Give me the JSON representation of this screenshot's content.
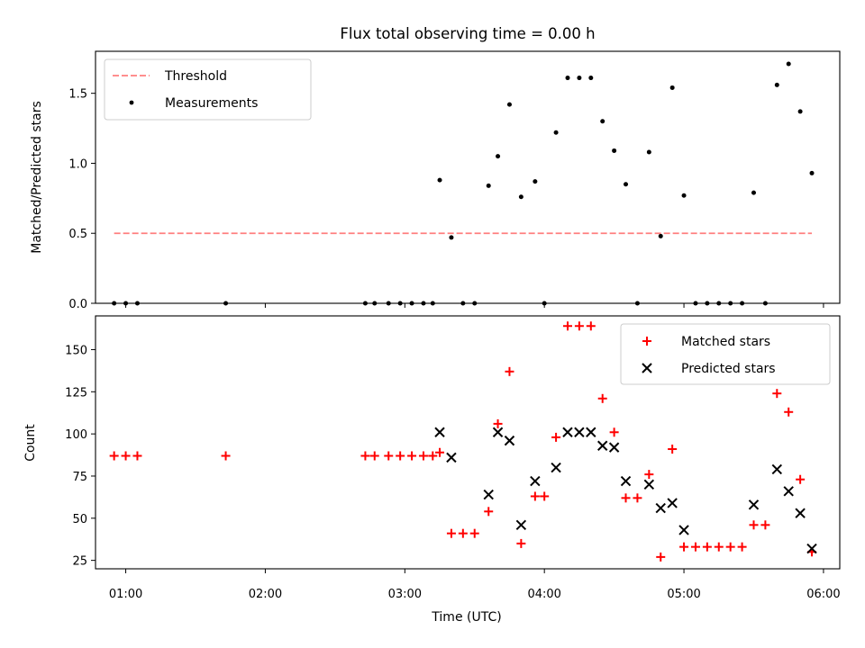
{
  "figure": {
    "title": "Flux total observing time = 0.00 h"
  },
  "chart_data": [
    {
      "type": "scatter",
      "ylabel": "Matched/Predicted stars",
      "xlabel": "",
      "xlim": [
        "00:47",
        "06:07"
      ],
      "ylim": [
        0,
        1.8
      ],
      "yticks": [
        0.0,
        0.5,
        1.0,
        1.5
      ],
      "ytick_labels": [
        "0.0",
        "0.5",
        "1.0",
        "1.5"
      ],
      "legend_position": "top-left",
      "grid": false,
      "series": [
        {
          "name": "Threshold",
          "kind": "line",
          "style": "dashed",
          "color": "#ff7f7f",
          "points": [
            [
              "00:55",
              0.5
            ],
            [
              "05:55",
              0.5
            ]
          ]
        },
        {
          "name": "Measurements",
          "kind": "scatter",
          "marker": "dot",
          "color": "#000000",
          "points": [
            [
              "00:55",
              0.0
            ],
            [
              "01:00",
              0.0
            ],
            [
              "01:05",
              0.0
            ],
            [
              "01:43",
              0.0
            ],
            [
              "02:43",
              0.0
            ],
            [
              "02:47",
              0.0
            ],
            [
              "02:53",
              0.0
            ],
            [
              "02:58",
              0.0
            ],
            [
              "03:03",
              0.0
            ],
            [
              "03:08",
              0.0
            ],
            [
              "03:12",
              0.0
            ],
            [
              "03:15",
              0.88
            ],
            [
              "03:20",
              0.47
            ],
            [
              "03:25",
              0.0
            ],
            [
              "03:30",
              0.0
            ],
            [
              "03:36",
              0.84
            ],
            [
              "03:40",
              1.05
            ],
            [
              "03:45",
              1.42
            ],
            [
              "03:50",
              0.76
            ],
            [
              "03:56",
              0.87
            ],
            [
              "04:00",
              0.0
            ],
            [
              "04:05",
              1.22
            ],
            [
              "04:10",
              1.61
            ],
            [
              "04:15",
              1.61
            ],
            [
              "04:20",
              1.61
            ],
            [
              "04:25",
              1.3
            ],
            [
              "04:30",
              1.09
            ],
            [
              "04:35",
              0.85
            ],
            [
              "04:40",
              0.0
            ],
            [
              "04:45",
              1.08
            ],
            [
              "04:50",
              0.48
            ],
            [
              "04:55",
              1.54
            ],
            [
              "05:00",
              0.77
            ],
            [
              "05:05",
              0.0
            ],
            [
              "05:10",
              0.0
            ],
            [
              "05:15",
              0.0
            ],
            [
              "05:20",
              0.0
            ],
            [
              "05:25",
              0.0
            ],
            [
              "05:30",
              0.79
            ],
            [
              "05:35",
              0.0
            ],
            [
              "05:40",
              1.56
            ],
            [
              "05:45",
              1.71
            ],
            [
              "05:50",
              1.37
            ],
            [
              "05:55",
              0.93
            ]
          ]
        }
      ]
    },
    {
      "type": "scatter",
      "ylabel": "Count",
      "xlabel": "Time (UTC)",
      "xlim": [
        "00:47",
        "06:07"
      ],
      "ylim": [
        20,
        170
      ],
      "yticks": [
        25,
        50,
        75,
        100,
        125,
        150
      ],
      "ytick_labels": [
        "25",
        "50",
        "75",
        "100",
        "125",
        "150"
      ],
      "xticks": [
        "01:00",
        "02:00",
        "03:00",
        "04:00",
        "05:00",
        "06:00"
      ],
      "xtick_labels": [
        "01:00",
        "02:00",
        "03:00",
        "04:00",
        "05:00",
        "06:00"
      ],
      "legend_position": "top-right",
      "grid": false,
      "series": [
        {
          "name": "Matched stars",
          "kind": "scatter",
          "marker": "plus",
          "color": "#ff0000",
          "points": [
            [
              "00:55",
              87
            ],
            [
              "01:00",
              87
            ],
            [
              "01:05",
              87
            ],
            [
              "01:43",
              87
            ],
            [
              "02:43",
              87
            ],
            [
              "02:47",
              87
            ],
            [
              "02:53",
              87
            ],
            [
              "02:58",
              87
            ],
            [
              "03:03",
              87
            ],
            [
              "03:08",
              87
            ],
            [
              "03:12",
              87
            ],
            [
              "03:15",
              89
            ],
            [
              "03:20",
              41
            ],
            [
              "03:25",
              41
            ],
            [
              "03:30",
              41
            ],
            [
              "03:36",
              54
            ],
            [
              "03:40",
              106
            ],
            [
              "03:45",
              137
            ],
            [
              "03:50",
              35
            ],
            [
              "03:56",
              63
            ],
            [
              "04:00",
              63
            ],
            [
              "04:05",
              98
            ],
            [
              "04:10",
              164
            ],
            [
              "04:15",
              164
            ],
            [
              "04:20",
              164
            ],
            [
              "04:25",
              121
            ],
            [
              "04:30",
              101
            ],
            [
              "04:35",
              62
            ],
            [
              "04:40",
              62
            ],
            [
              "04:45",
              76
            ],
            [
              "04:50",
              27
            ],
            [
              "04:55",
              91
            ],
            [
              "05:00",
              33
            ],
            [
              "05:05",
              33
            ],
            [
              "05:10",
              33
            ],
            [
              "05:15",
              33
            ],
            [
              "05:20",
              33
            ],
            [
              "05:25",
              33
            ],
            [
              "05:30",
              46
            ],
            [
              "05:35",
              46
            ],
            [
              "05:40",
              124
            ],
            [
              "05:45",
              113
            ],
            [
              "05:50",
              73
            ],
            [
              "05:55",
              30
            ]
          ]
        },
        {
          "name": "Predicted stars",
          "kind": "scatter",
          "marker": "x",
          "color": "#000000",
          "points": [
            [
              "03:15",
              101
            ],
            [
              "03:20",
              86
            ],
            [
              "03:36",
              64
            ],
            [
              "03:40",
              101
            ],
            [
              "03:45",
              96
            ],
            [
              "03:50",
              46
            ],
            [
              "03:56",
              72
            ],
            [
              "04:05",
              80
            ],
            [
              "04:10",
              101
            ],
            [
              "04:15",
              101
            ],
            [
              "04:20",
              101
            ],
            [
              "04:25",
              93
            ],
            [
              "04:30",
              92
            ],
            [
              "04:35",
              72
            ],
            [
              "04:45",
              70
            ],
            [
              "04:50",
              56
            ],
            [
              "04:55",
              59
            ],
            [
              "05:00",
              43
            ],
            [
              "05:30",
              58
            ],
            [
              "05:40",
              79
            ],
            [
              "05:45",
              66
            ],
            [
              "05:50",
              53
            ],
            [
              "05:55",
              32
            ]
          ]
        }
      ]
    }
  ]
}
